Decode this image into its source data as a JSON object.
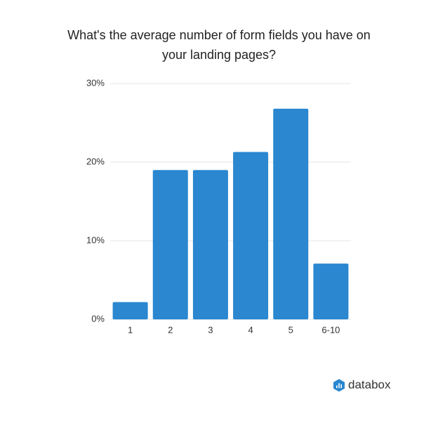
{
  "chart_data": {
    "type": "bar",
    "title": "What's the average number of form fields you have on your landing pages?",
    "categories": [
      "1",
      "2",
      "3",
      "4",
      "5",
      "6-10"
    ],
    "values": [
      2.2,
      19.0,
      19.0,
      21.3,
      26.8,
      7.1
    ],
    "color": "#2a87d0",
    "ylim": [
      0,
      30
    ],
    "yticks": [
      {
        "value": 0,
        "label": "0%"
      },
      {
        "value": 10,
        "label": "10%"
      },
      {
        "value": 20,
        "label": "20%"
      },
      {
        "value": 30,
        "label": "30%"
      }
    ],
    "grid": true
  },
  "brand": "databox"
}
